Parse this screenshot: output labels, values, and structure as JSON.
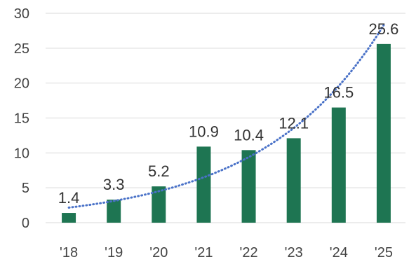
{
  "chart_data": {
    "type": "bar",
    "categories": [
      "'18",
      "'19",
      "'20",
      "'21",
      "'22",
      "'23",
      "'24",
      "'25"
    ],
    "values": [
      1.4,
      3.3,
      5.2,
      10.9,
      10.4,
      12.1,
      16.5,
      25.6
    ],
    "data_labels": [
      "1.4",
      "3.3",
      "5.2",
      "10.9",
      "10.4",
      "12.1",
      "16.5",
      "25.6"
    ],
    "y_ticks": [
      "0",
      "5",
      "10",
      "15",
      "20",
      "25",
      "30"
    ],
    "ylim": [
      0,
      30
    ],
    "grid": true,
    "trendline": {
      "type": "exponential",
      "style": "dotted"
    },
    "colors": {
      "bar": "#1e7552",
      "trendline": "#4a72c8",
      "grid": "#d9d9d9"
    }
  }
}
